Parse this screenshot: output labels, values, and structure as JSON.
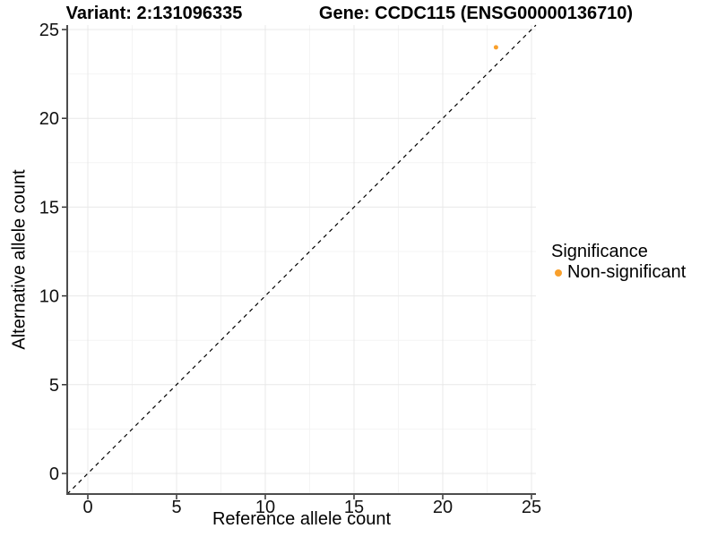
{
  "titles": {
    "variant": "Variant: 2:131096335",
    "gene": "Gene: CCDC115 (ENSG00000136710)"
  },
  "chart_data": {
    "type": "scatter",
    "title_left": "Variant: 2:131096335",
    "title_right": "Gene: CCDC115 (ENSG00000136710)",
    "xlabel": "Reference allele count",
    "ylabel": "Alternative allele count",
    "xlim": [
      -1.16,
      25.25
    ],
    "ylim": [
      -1.16,
      25.25
    ],
    "xticks": [
      0,
      5,
      10,
      15,
      20,
      25
    ],
    "yticks": [
      0,
      5,
      10,
      15,
      20,
      25
    ],
    "x_minor_ticks": [
      2.5,
      7.5,
      12.5,
      17.5,
      22.5
    ],
    "y_minor_ticks": [
      2.5,
      7.5,
      12.5,
      17.5,
      22.5
    ],
    "grid": true,
    "points": [
      {
        "x": 23,
        "y": 24,
        "series": "Non-significant"
      }
    ],
    "identity_line": {
      "style": "dashed",
      "from": [
        -1.16,
        -1.16
      ],
      "to": [
        25.25,
        25.25
      ]
    },
    "legend": {
      "title": "Significance",
      "position": "right",
      "entries": [
        {
          "label": "Non-significant",
          "color": "#F9A02C"
        }
      ]
    }
  },
  "colors": {
    "point": "#F9A02C",
    "grid_major": "#E8E8E8",
    "grid_minor": "#F4F4F4",
    "axis_line": "#4D4D4D",
    "tick_mark": "#333333",
    "tick_text": "#111111",
    "reference_line": "#000000",
    "background": "#FFFFFF"
  }
}
